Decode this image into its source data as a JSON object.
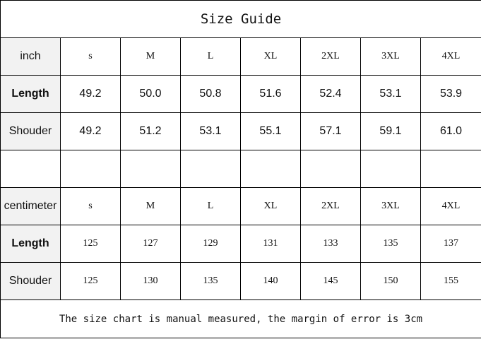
{
  "title": "Size Guide",
  "sizes": [
    "s",
    "M",
    "L",
    "XL",
    "2XL",
    "3XL",
    "4XL"
  ],
  "inch": {
    "unit_label": "inch",
    "length_label": "Length",
    "length": [
      "49.2",
      "50.0",
      "50.8",
      "51.6",
      "52.4",
      "53.1",
      "53.9"
    ],
    "shoulder_label": "Shouder",
    "shoulder": [
      "49.2",
      "51.2",
      "53.1",
      "55.1",
      "57.1",
      "59.1",
      "61.0"
    ]
  },
  "cm": {
    "unit_label": "centimeter",
    "length_label": "Length",
    "length": [
      "125",
      "127",
      "129",
      "131",
      "133",
      "135",
      "137"
    ],
    "shoulder_label": "Shouder",
    "shoulder": [
      "125",
      "130",
      "135",
      "140",
      "145",
      "150",
      "155"
    ]
  },
  "footer": "The size chart is manual measured, the margin of error is 3cm"
}
